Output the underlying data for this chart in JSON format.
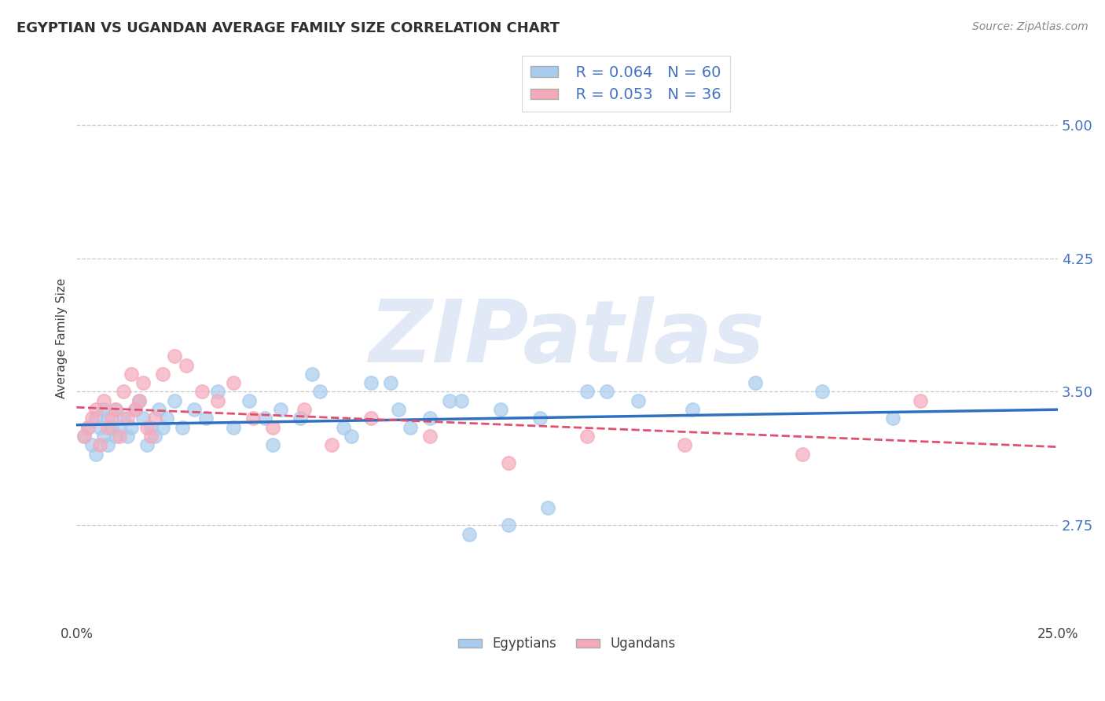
{
  "title": "EGYPTIAN VS UGANDAN AVERAGE FAMILY SIZE CORRELATION CHART",
  "source_text": "Source: ZipAtlas.com",
  "ylabel": "Average Family Size",
  "xlim": [
    0.0,
    0.25
  ],
  "ylim": [
    2.2,
    5.4
  ],
  "yticks": [
    2.75,
    3.5,
    4.25,
    5.0
  ],
  "xticks": [
    0.0,
    0.05,
    0.1,
    0.15,
    0.2,
    0.25
  ],
  "xticklabels": [
    "0.0%",
    "",
    "",
    "",
    "",
    "25.0%"
  ],
  "color_egyptian": "#A8CCEE",
  "color_ugandan": "#F5AABB",
  "color_trend_egyptian": "#3070C0",
  "color_trend_ugandan": "#E05070",
  "color_axis_labels": "#4472C4",
  "color_grid": "#BBBBBB",
  "color_title": "#303030",
  "legend_r_egyptian": "R = 0.064",
  "legend_n_egyptian": "N = 60",
  "legend_r_ugandan": "R = 0.053",
  "legend_n_ugandan": "N = 36",
  "watermark": "ZIPatlas",
  "egyptians_x": [
    0.002,
    0.003,
    0.004,
    0.005,
    0.005,
    0.006,
    0.007,
    0.007,
    0.008,
    0.008,
    0.009,
    0.01,
    0.01,
    0.011,
    0.012,
    0.013,
    0.014,
    0.015,
    0.016,
    0.017,
    0.018,
    0.019,
    0.02,
    0.021,
    0.022,
    0.023,
    0.025,
    0.027,
    0.03,
    0.033,
    0.036,
    0.04,
    0.044,
    0.048,
    0.052,
    0.057,
    0.062,
    0.068,
    0.075,
    0.082,
    0.09,
    0.098,
    0.108,
    0.118,
    0.13,
    0.143,
    0.157,
    0.173,
    0.19,
    0.208,
    0.05,
    0.06,
    0.07,
    0.08,
    0.085,
    0.095,
    0.1,
    0.11,
    0.12,
    0.135
  ],
  "egyptians_y": [
    3.25,
    3.3,
    3.2,
    3.35,
    3.15,
    3.3,
    3.25,
    3.4,
    3.2,
    3.35,
    3.3,
    3.25,
    3.4,
    3.3,
    3.35,
    3.25,
    3.3,
    3.4,
    3.45,
    3.35,
    3.2,
    3.3,
    3.25,
    3.4,
    3.3,
    3.35,
    3.45,
    3.3,
    3.4,
    3.35,
    3.5,
    3.3,
    3.45,
    3.35,
    3.4,
    3.35,
    3.5,
    3.3,
    3.55,
    3.4,
    3.35,
    3.45,
    3.4,
    3.35,
    3.5,
    3.45,
    3.4,
    3.55,
    3.5,
    3.35,
    3.2,
    3.6,
    3.25,
    3.55,
    3.3,
    3.45,
    2.7,
    2.75,
    2.85,
    3.5
  ],
  "ugandans_x": [
    0.002,
    0.003,
    0.004,
    0.005,
    0.006,
    0.007,
    0.008,
    0.009,
    0.01,
    0.011,
    0.012,
    0.013,
    0.014,
    0.015,
    0.016,
    0.017,
    0.018,
    0.019,
    0.02,
    0.022,
    0.025,
    0.028,
    0.032,
    0.036,
    0.04,
    0.045,
    0.05,
    0.058,
    0.065,
    0.075,
    0.09,
    0.11,
    0.13,
    0.155,
    0.185,
    0.215
  ],
  "ugandans_y": [
    3.25,
    3.3,
    3.35,
    3.4,
    3.2,
    3.45,
    3.3,
    3.35,
    3.4,
    3.25,
    3.5,
    3.35,
    3.6,
    3.4,
    3.45,
    3.55,
    3.3,
    3.25,
    3.35,
    3.6,
    3.7,
    3.65,
    3.5,
    3.45,
    3.55,
    3.35,
    3.3,
    3.4,
    3.2,
    3.35,
    3.25,
    3.1,
    3.25,
    3.2,
    3.15,
    3.45
  ]
}
